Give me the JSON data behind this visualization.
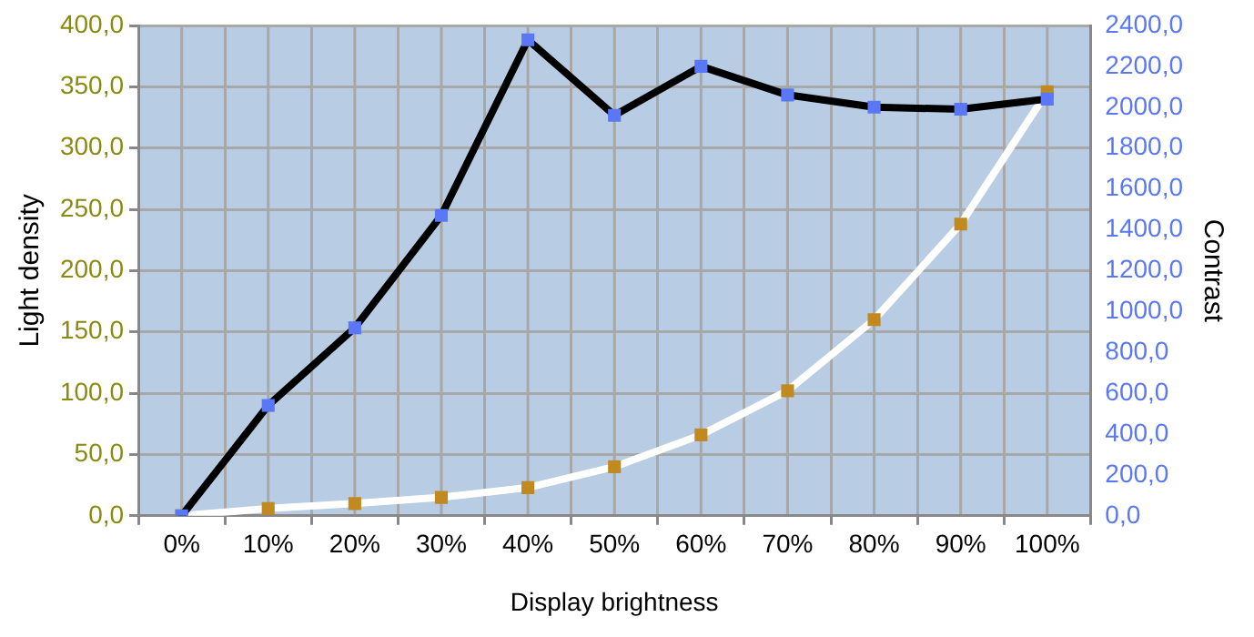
{
  "chart_data": {
    "type": "line",
    "xlabel": "Display brightness",
    "ylabel": "Light density",
    "y2label": "Contrast",
    "categories": [
      "0%",
      "10%",
      "20%",
      "30%",
      "40%",
      "50%",
      "60%",
      "70%",
      "80%",
      "90%",
      "100%"
    ],
    "series": [
      {
        "name": null,
        "color": "#ffffff",
        "colors": [
          "#c08a20",
          "#c08a20",
          "#c08a20",
          "#c08a20",
          "#c08a20",
          "#c08a20",
          "#c08a20",
          "#c08a20",
          "#c08a20",
          "#c08a20",
          "#c08a20"
        ],
        "values": [
          0,
          6,
          10,
          15,
          23,
          40,
          66,
          102,
          160,
          238,
          346
        ]
      },
      {
        "name": null,
        "color": "#000000",
        "colors": [
          "#5a78f5",
          "#5a78f5",
          "#5a78f5",
          "#5a78f5",
          "#5a78f5",
          "#5a78f5",
          "#5a78f5",
          "#5a78f5",
          "#5a78f5",
          "#5a78f5",
          "#5a78f5"
        ],
        "axis": "y2",
        "values": [
          0,
          540,
          920,
          1470,
          2330,
          1960,
          2200,
          2060,
          2000,
          1990,
          2040
        ]
      }
    ],
    "ylim": [
      0,
      400
    ],
    "yticks": [
      {
        "value": 0,
        "label": "0,0"
      },
      {
        "value": 50,
        "label": "50,0"
      },
      {
        "value": 100,
        "label": "100,0"
      },
      {
        "value": 150,
        "label": "150,0"
      },
      {
        "value": 200,
        "label": "200,0"
      },
      {
        "value": 250,
        "label": "250,0"
      },
      {
        "value": 300,
        "label": "300,0"
      },
      {
        "value": 350,
        "label": "350,0"
      },
      {
        "value": 400,
        "label": "400,0"
      }
    ],
    "y2lim": [
      0,
      2400
    ],
    "y2ticks": [
      {
        "value": 0,
        "label": "0,0"
      },
      {
        "value": 200,
        "label": "200,0"
      },
      {
        "value": 400,
        "label": "400,0"
      },
      {
        "value": 600,
        "label": "600,0"
      },
      {
        "value": 800,
        "label": "800,0"
      },
      {
        "value": 1000,
        "label": "1000,0"
      },
      {
        "value": 1200,
        "label": "1200,0"
      },
      {
        "value": 1400,
        "label": "1400,0"
      },
      {
        "value": 1600,
        "label": "1600,0"
      },
      {
        "value": 1800,
        "label": "1800,0"
      },
      {
        "value": 2000,
        "label": "2000,0"
      },
      {
        "value": 2200,
        "label": "2200,0"
      },
      {
        "value": 2400,
        "label": "2400,0"
      }
    ],
    "grid": true,
    "legend": false,
    "marker": "square",
    "line_style": "solid"
  }
}
